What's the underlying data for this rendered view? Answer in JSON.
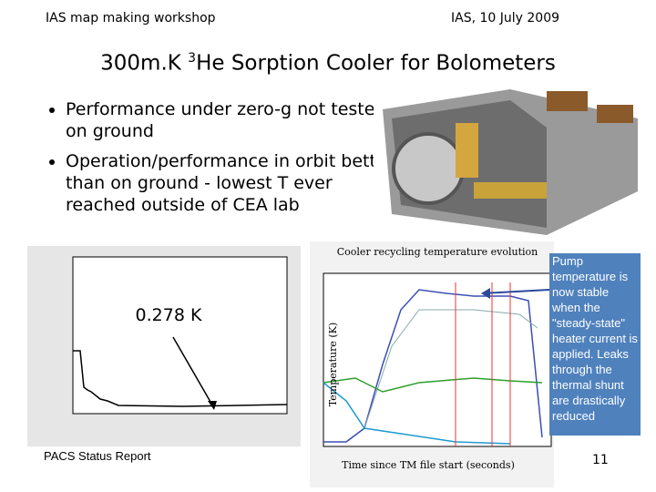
{
  "header": {
    "left": "IAS map making workshop",
    "right": "IAS, 10 July 2009"
  },
  "title": {
    "before": "300m.K ",
    "sup": "3",
    "after": "He Sorption Cooler for Bolometers"
  },
  "bullets": [
    "Performance under zero-g not tested on ground",
    "Operation/performance in orbit better than on ground - lowest T ever reached outside of CEA lab"
  ],
  "left_plot": {
    "label": "0.278 K"
  },
  "right_plot": {
    "title": "Cooler recycling temperature evolution",
    "x_label": "Time since TM file start (seconds)",
    "y_label": "Temperature (K)"
  },
  "annotation": "Pump temperature is now stable when the \"steady-state\" heater current is applied. Leaks through the thermal shunt are drastically reduced",
  "footer": {
    "left": "PACS Status Report",
    "page": "11"
  }
}
